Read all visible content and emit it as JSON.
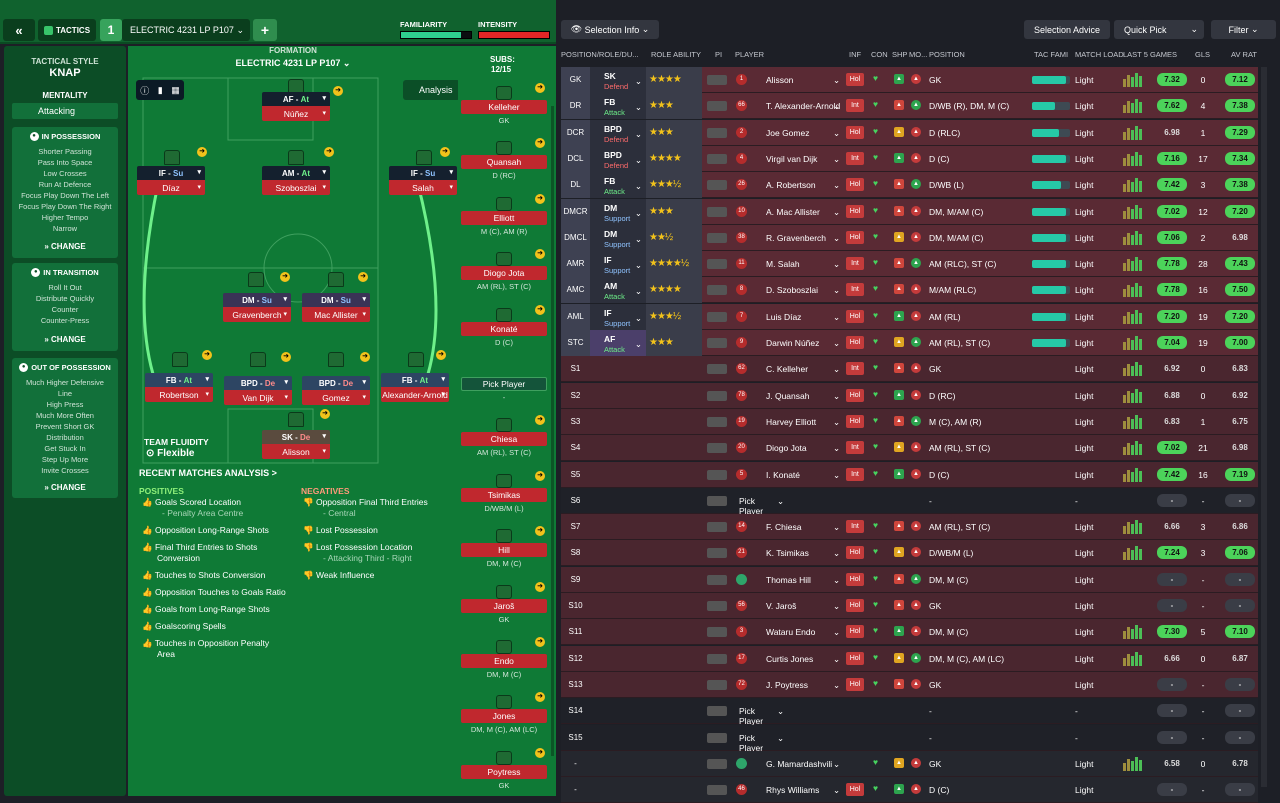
{
  "topbar": {
    "tab": "TACTICS",
    "slot": "1",
    "tactic": "ELECTRIC 4231 LP P107",
    "plus": "+",
    "familiarity": "FAMILIARITY",
    "intensity": "INTENSITY"
  },
  "side": {
    "style_label": "TACTICAL STYLE",
    "style": "KNAP",
    "mentality_label": "MENTALITY",
    "mentality": "Attacking",
    "possession": {
      "title": "IN POSSESSION",
      "lines": [
        "Shorter Passing",
        "Pass Into Space",
        "Low Crosses",
        "Run At Defence",
        "Focus Play Down The Left",
        "Focus Play Down The Right",
        "Higher Tempo",
        "Narrow"
      ]
    },
    "transition": {
      "title": "IN TRANSITION",
      "lines": [
        "Roll It Out",
        "Distribute Quickly",
        "Counter",
        "Counter-Press"
      ]
    },
    "oop": {
      "title": "OUT OF POSSESSION",
      "lines": [
        "Much Higher Defensive",
        "Line",
        "High Press",
        "Much More Often",
        "Prevent Short GK",
        "Distribution",
        "Get Stuck In",
        "Step Up More",
        "Invite Crosses"
      ]
    },
    "change": "CHANGE"
  },
  "pitch": {
    "formation_label": "FORMATION",
    "formation": "ELECTRIC 4231 LP P107",
    "analysis": "Analysis",
    "fluidity_label": "TEAM FLUIDITY",
    "fluidity": "Flexible",
    "recent": "RECENT MATCHES ANALYSIS >",
    "positives_label": "POSITIVES",
    "negatives_label": "NEGATIVES",
    "positives": [
      "Goals Scored Location",
      "- Penalty Area Centre",
      "Opposition Long-Range Shots",
      "Final Third Entries to Shots",
      "Conversion",
      "Touches to Shots Conversion",
      "Opposition Touches to Goals Ratio",
      "Goals from Long-Range Shots",
      "Goalscoring Spells",
      "Touches in Opposition Penalty",
      "Area"
    ],
    "negatives": [
      "Opposition Final Third Entries",
      "- Central",
      "Lost Possession",
      "Lost Possession Location",
      "- Attacking Third - Right",
      "Weak Influence"
    ],
    "players": [
      {
        "r": "AF",
        "d": "At",
        "n": "Núñez"
      },
      {
        "r": "IF",
        "d": "Su",
        "n": "Díaz"
      },
      {
        "r": "AM",
        "d": "At",
        "n": "Szoboszlai"
      },
      {
        "r": "IF",
        "d": "Su",
        "n": "Salah"
      },
      {
        "r": "DM",
        "d": "Su",
        "n": "Gravenberch"
      },
      {
        "r": "DM",
        "d": "Su",
        "n": "Mac Allister"
      },
      {
        "r": "FB",
        "d": "At",
        "n": "Robertson"
      },
      {
        "r": "BPD",
        "d": "De",
        "n": "Van Dijk"
      },
      {
        "r": "BPD",
        "d": "De",
        "n": "Gomez"
      },
      {
        "r": "FB",
        "d": "At",
        "n": "Alexander-Arnold"
      },
      {
        "r": "SK",
        "d": "De",
        "n": "Alisson"
      }
    ]
  },
  "subs": {
    "label": "SUBS:",
    "count": "12/15",
    "list": [
      {
        "n": "Kelleher",
        "p": "GK"
      },
      {
        "n": "Quansah",
        "p": "D (RC)"
      },
      {
        "n": "Elliott",
        "p": "M (C), AM (R)"
      },
      {
        "n": "Diogo Jota",
        "p": "AM (RL), ST (C)"
      },
      {
        "n": "Konaté",
        "p": "D (C)"
      },
      {
        "n": "Pick Player",
        "p": "-"
      },
      {
        "n": "Chiesa",
        "p": "AM (RL), ST (C)"
      },
      {
        "n": "Tsimikas",
        "p": "D/WB/M (L)"
      },
      {
        "n": "Hill",
        "p": "DM, M (C)"
      },
      {
        "n": "Jaroš",
        "p": "GK"
      },
      {
        "n": "Endo",
        "p": "DM, M (C)"
      },
      {
        "n": "Jones",
        "p": "DM, M (C), AM (LC)"
      },
      {
        "n": "Poytress",
        "p": "GK"
      }
    ]
  },
  "right": {
    "selection_info": "Selection Info",
    "selection_advice": "Selection Advice",
    "quick_pick": "Quick Pick",
    "filter": "Filter",
    "headers": [
      "POSITION/ROLE/DU...",
      "ROLE ABILITY",
      "PI",
      "PLAYER",
      "INF",
      "CON",
      "SHP",
      "MO...",
      "POSITION",
      "TAC FAMI",
      "MATCH LOAD",
      "LAST 5 GAMES",
      "GLS",
      "AV RAT"
    ],
    "rows": [
      {
        "pos": "GK",
        "role": "SK",
        "duty": "Defend",
        "stars": "★★★★",
        "num": "1",
        "name": "Alisson",
        "inf": "Hol",
        "posn": "GK",
        "tf": 0.9,
        "load": "Light",
        "rt": "7.32",
        "gls": "0",
        "av": "7.12"
      },
      {
        "pos": "DR",
        "role": "FB",
        "duty": "Attack",
        "stars": "★★★",
        "num": "66",
        "name": "T. Alexander-Arnold",
        "inf": "Int",
        "posn": "D/WB (R), DM, M (C)",
        "tf": 0.6,
        "load": "Light",
        "rt": "7.62",
        "gls": "4",
        "av": "7.38"
      },
      {
        "pos": "DCR",
        "role": "BPD",
        "duty": "Defend",
        "stars": "★★★",
        "num": "2",
        "name": "Joe Gomez",
        "inf": "Hol",
        "posn": "D (RLC)",
        "tf": 0.7,
        "load": "Light",
        "rt": "6.98",
        "gls": "1",
        "av": "7.29"
      },
      {
        "pos": "DCL",
        "role": "BPD",
        "duty": "Defend",
        "stars": "★★★★",
        "num": "4",
        "name": "Virgil van Dijk",
        "inf": "Int",
        "posn": "D (C)",
        "tf": 0.9,
        "load": "Light",
        "rt": "7.16",
        "gls": "17",
        "av": "7.34"
      },
      {
        "pos": "DL",
        "role": "FB",
        "duty": "Attack",
        "stars": "★★★½",
        "num": "26",
        "name": "A. Robertson",
        "inf": "Hol",
        "posn": "D/WB (L)",
        "tf": 0.75,
        "load": "Light",
        "rt": "7.42",
        "gls": "3",
        "av": "7.38"
      },
      {
        "pos": "DMCR",
        "role": "DM",
        "duty": "Support",
        "stars": "★★★",
        "num": "10",
        "name": "A. Mac Allister",
        "inf": "Hol",
        "posn": "DM, M/AM (C)",
        "tf": 0.9,
        "load": "Light",
        "rt": "7.02",
        "gls": "12",
        "av": "7.20"
      },
      {
        "pos": "DMCL",
        "role": "DM",
        "duty": "Support",
        "stars": "★★½",
        "num": "38",
        "name": "R. Gravenberch",
        "inf": "Hol",
        "posn": "DM, M/AM (C)",
        "tf": 0.9,
        "load": "Light",
        "rt": "7.06",
        "gls": "2",
        "av": "6.98"
      },
      {
        "pos": "AMR",
        "role": "IF",
        "duty": "Support",
        "stars": "★★★★½",
        "num": "11",
        "name": "M. Salah",
        "inf": "Int",
        "posn": "AM (RLC), ST (C)",
        "tf": 0.9,
        "load": "Light",
        "rt": "7.78",
        "gls": "28",
        "av": "7.43"
      },
      {
        "pos": "AMC",
        "role": "AM",
        "duty": "Attack",
        "stars": "★★★★",
        "num": "8",
        "name": "D. Szoboszlai",
        "inf": "Int",
        "posn": "M/AM (RLC)",
        "tf": 0.9,
        "load": "Light",
        "rt": "7.78",
        "gls": "16",
        "av": "7.50"
      },
      {
        "pos": "AML",
        "role": "IF",
        "duty": "Support",
        "stars": "★★★½",
        "num": "7",
        "name": "Luis Díaz",
        "inf": "Hol",
        "posn": "AM (RL)",
        "tf": 0.9,
        "load": "Light",
        "rt": "7.20",
        "gls": "19",
        "av": "7.20"
      },
      {
        "pos": "STC",
        "role": "AF",
        "duty": "Attack",
        "stars": "★★★",
        "num": "9",
        "name": "Darwin Núñez",
        "inf": "Hol",
        "posn": "AM (RL), ST (C)",
        "tf": 0.9,
        "load": "Light",
        "rt": "7.04",
        "gls": "19",
        "av": "7.00"
      },
      {
        "pos": "S1",
        "num": "62",
        "name": "C. Kelleher",
        "inf": "Int",
        "posn": "GK",
        "load": "Light",
        "rt": "6.92",
        "gls": "0",
        "av": "6.83"
      },
      {
        "pos": "S2",
        "num": "78",
        "name": "J. Quansah",
        "inf": "Hol",
        "posn": "D (RC)",
        "load": "Light",
        "rt": "6.88",
        "gls": "0",
        "av": "6.92"
      },
      {
        "pos": "S3",
        "num": "19",
        "name": "Harvey Elliott",
        "inf": "Hol",
        "posn": "M (C), AM (R)",
        "load": "Light",
        "rt": "6.83",
        "gls": "1",
        "av": "6.75"
      },
      {
        "pos": "S4",
        "num": "20",
        "name": "Diogo Jota",
        "inf": "Int",
        "posn": "AM (RL), ST (C)",
        "load": "Light",
        "rt": "7.02",
        "gls": "21",
        "av": "6.98"
      },
      {
        "pos": "S5",
        "num": "5",
        "name": "I. Konaté",
        "inf": "Int",
        "posn": "D (C)",
        "load": "Light",
        "rt": "7.42",
        "gls": "16",
        "av": "7.19"
      },
      {
        "pos": "S6",
        "pick": "Pick Player",
        "posn": "-",
        "load": "-",
        "rt": "-",
        "gls": "-",
        "av": "-"
      },
      {
        "pos": "S7",
        "num": "14",
        "name": "F. Chiesa",
        "inf": "Int",
        "posn": "AM (RL), ST (C)",
        "load": "Light",
        "rt": "6.66",
        "gls": "3",
        "av": "6.86"
      },
      {
        "pos": "S8",
        "num": "21",
        "name": "K. Tsimikas",
        "inf": "Hol",
        "posn": "D/WB/M (L)",
        "load": "Light",
        "rt": "7.24",
        "gls": "3",
        "av": "7.06"
      },
      {
        "pos": "S9",
        "num": "",
        "name": "Thomas Hill",
        "inf": "Hol",
        "posn": "DM, M (C)",
        "load": "Light",
        "rt": "-",
        "gls": "-",
        "av": "-"
      },
      {
        "pos": "S10",
        "num": "56",
        "name": "V. Jaroš",
        "inf": "Hol",
        "posn": "GK",
        "load": "Light",
        "rt": "-",
        "gls": "-",
        "av": "-"
      },
      {
        "pos": "S11",
        "num": "3",
        "name": "Wataru Endo",
        "inf": "Hol",
        "posn": "DM, M (C)",
        "load": "Light",
        "rt": "7.30",
        "gls": "5",
        "av": "7.10"
      },
      {
        "pos": "S12",
        "num": "17",
        "name": "Curtis Jones",
        "inf": "Hol",
        "posn": "DM, M (C), AM (LC)",
        "load": "Light",
        "rt": "6.66",
        "gls": "0",
        "av": "6.87"
      },
      {
        "pos": "S13",
        "num": "72",
        "name": "J. Poytress",
        "inf": "Hol",
        "posn": "GK",
        "load": "Light",
        "rt": "-",
        "gls": "-",
        "av": "-"
      },
      {
        "pos": "S14",
        "pick": "Pick Player",
        "posn": "-",
        "load": "-",
        "rt": "-",
        "gls": "-",
        "av": "-"
      },
      {
        "pos": "S15",
        "pick": "Pick Player",
        "posn": "-",
        "load": "-",
        "rt": "-",
        "gls": "-",
        "av": "-"
      },
      {
        "pos": "-",
        "num": "",
        "name": "G. Mamardashvili",
        "inf": "",
        "posn": "GK",
        "load": "Light",
        "rt": "6.58",
        "gls": "0",
        "av": "6.78"
      },
      {
        "pos": "-",
        "num": "46",
        "name": "Rhys Williams",
        "inf": "Hol",
        "posn": "D (C)",
        "load": "Light",
        "rt": "-",
        "gls": "-",
        "av": "-"
      }
    ]
  }
}
